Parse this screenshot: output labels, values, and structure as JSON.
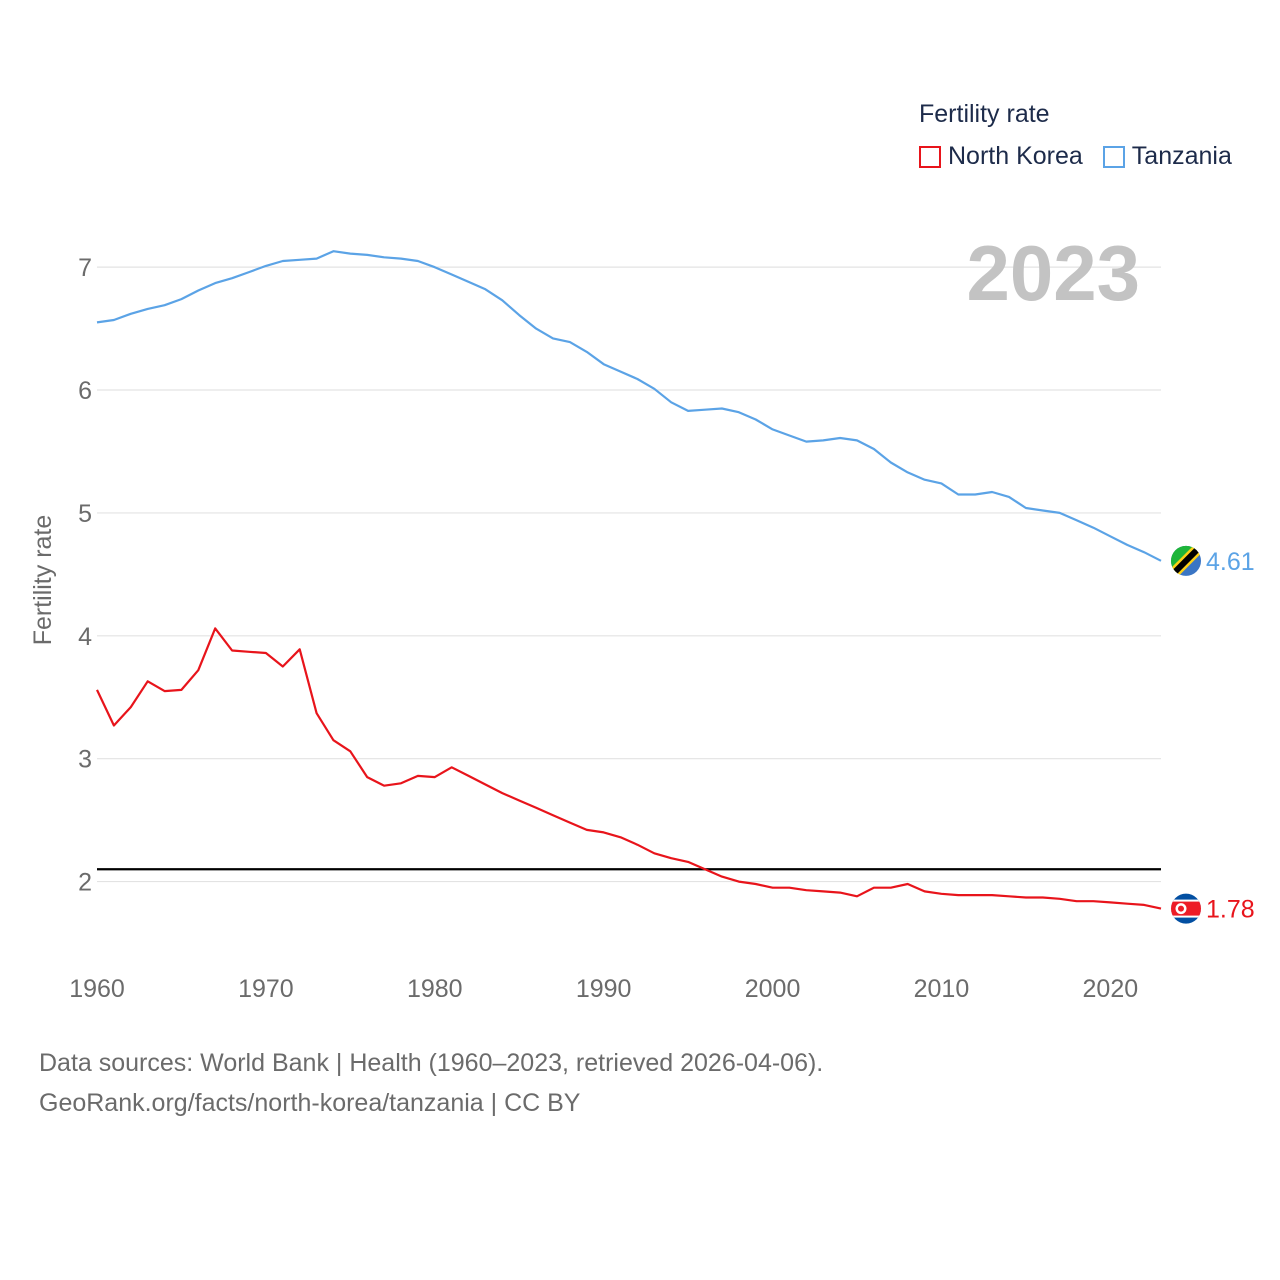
{
  "chart_data": {
    "type": "line",
    "title": "Fertility rate",
    "ylabel": "Fertility rate",
    "xlabel": "",
    "year_label": "2023",
    "xlim": [
      1960,
      2023
    ],
    "ylim": [
      1.5,
      7.4
    ],
    "x_ticks": [
      1960,
      1970,
      1980,
      1990,
      2000,
      2010,
      2020
    ],
    "y_ticks": [
      2,
      3,
      4,
      5,
      6,
      7
    ],
    "grid": true,
    "legend_position": "top-right",
    "reference_line": {
      "value": 2.1,
      "color": "#000000"
    },
    "x": [
      1960,
      1961,
      1962,
      1963,
      1964,
      1965,
      1966,
      1967,
      1968,
      1969,
      1970,
      1971,
      1972,
      1973,
      1974,
      1975,
      1976,
      1977,
      1978,
      1979,
      1980,
      1981,
      1982,
      1983,
      1984,
      1985,
      1986,
      1987,
      1988,
      1989,
      1990,
      1991,
      1992,
      1993,
      1994,
      1995,
      1996,
      1997,
      1998,
      1999,
      2000,
      2001,
      2002,
      2003,
      2004,
      2005,
      2006,
      2007,
      2008,
      2009,
      2010,
      2011,
      2012,
      2013,
      2014,
      2015,
      2016,
      2017,
      2018,
      2019,
      2020,
      2021,
      2022,
      2023
    ],
    "series": [
      {
        "name": "North Korea",
        "color": "#e8141b",
        "end_label": "1.78",
        "flag": "north-korea-flag",
        "values": [
          3.56,
          3.27,
          3.42,
          3.63,
          3.55,
          3.56,
          3.72,
          4.06,
          3.88,
          3.87,
          3.86,
          3.75,
          3.89,
          3.37,
          3.15,
          3.06,
          2.85,
          2.78,
          2.8,
          2.86,
          2.85,
          2.93,
          2.86,
          2.79,
          2.72,
          2.66,
          2.6,
          2.54,
          2.48,
          2.42,
          2.4,
          2.36,
          2.3,
          2.23,
          2.19,
          2.16,
          2.1,
          2.04,
          2.0,
          1.98,
          1.95,
          1.95,
          1.93,
          1.92,
          1.91,
          1.88,
          1.95,
          1.95,
          1.98,
          1.92,
          1.9,
          1.89,
          1.89,
          1.89,
          1.88,
          1.87,
          1.87,
          1.86,
          1.84,
          1.84,
          1.83,
          1.82,
          1.81,
          1.78
        ]
      },
      {
        "name": "Tanzania",
        "color": "#5ba3e6",
        "end_label": "4.61",
        "flag": "tanzania-flag",
        "values": [
          6.55,
          6.57,
          6.62,
          6.66,
          6.69,
          6.74,
          6.81,
          6.87,
          6.91,
          6.96,
          7.01,
          7.05,
          7.06,
          7.07,
          7.13,
          7.11,
          7.1,
          7.08,
          7.07,
          7.05,
          7.0,
          6.94,
          6.88,
          6.82,
          6.73,
          6.61,
          6.5,
          6.42,
          6.39,
          6.31,
          6.21,
          6.15,
          6.09,
          6.01,
          5.9,
          5.83,
          5.84,
          5.85,
          5.82,
          5.76,
          5.68,
          5.63,
          5.58,
          5.59,
          5.61,
          5.59,
          5.52,
          5.41,
          5.33,
          5.27,
          5.24,
          5.15,
          5.15,
          5.17,
          5.13,
          5.04,
          5.02,
          5.0,
          4.94,
          4.88,
          4.81,
          4.74,
          4.68,
          4.61
        ]
      }
    ]
  },
  "legend": {
    "title": "Fertility rate",
    "items": [
      "North Korea",
      "Tanzania"
    ]
  },
  "source": {
    "line1": "Data sources: World Bank | Health (1960–2023, retrieved 2026-04-06).",
    "line2": "GeoRank.org/facts/north-korea/tanzania | CC BY"
  }
}
